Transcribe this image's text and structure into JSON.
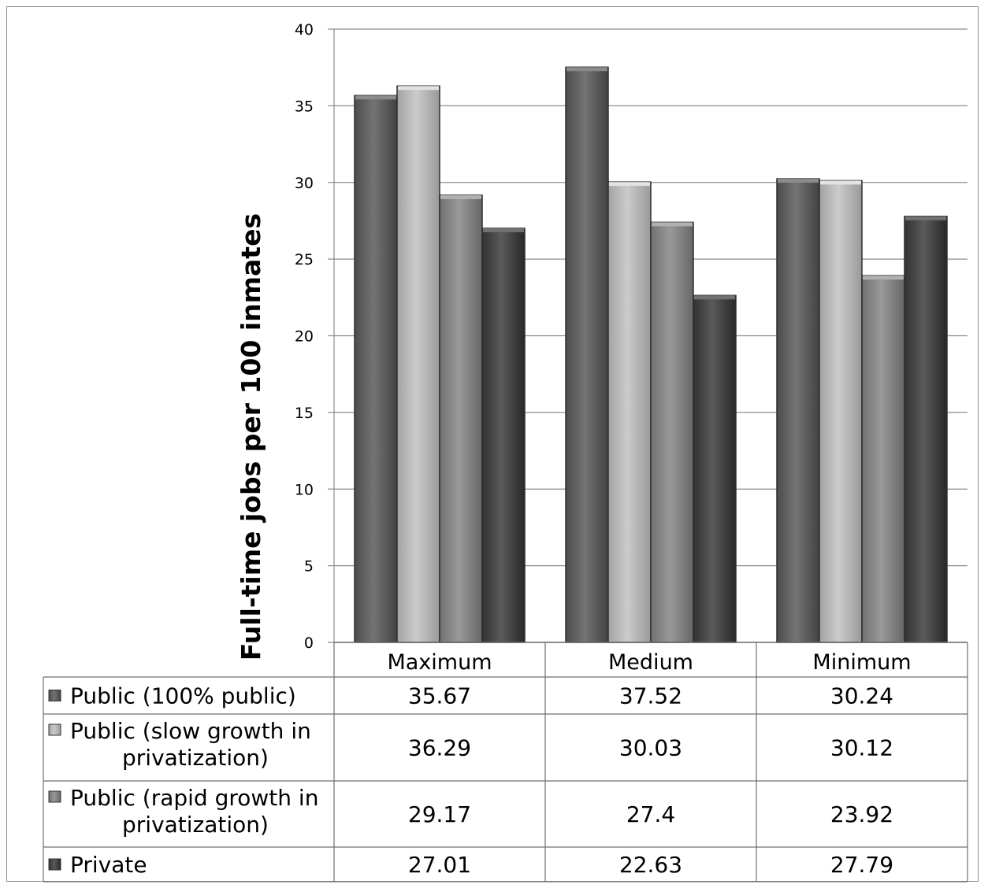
{
  "chart_data": {
    "type": "bar",
    "title": "",
    "xlabel": "",
    "ylabel": "Full-time jobs per 100 inmates",
    "ylim": [
      0,
      40
    ],
    "yticks": [
      0,
      5,
      10,
      15,
      20,
      25,
      30,
      35,
      40
    ],
    "grid": true,
    "legend_placement": "data table",
    "categories": [
      "Maximum",
      "Medium",
      "Minimum"
    ],
    "series": [
      {
        "name": "Public (100% public)",
        "legend_lines": [
          "Public (100% public)"
        ],
        "values": [
          35.67,
          37.52,
          30.24
        ],
        "labels": [
          "35.67",
          "37.52",
          "30.24"
        ],
        "color": "#5e5e5e"
      },
      {
        "name": "Public (slow growth in privatization)",
        "legend_lines": [
          "Public (slow growth in",
          "privatization)"
        ],
        "values": [
          36.29,
          30.03,
          30.12
        ],
        "labels": [
          "36.29",
          "30.03",
          "30.12"
        ],
        "color": "#b5b5b5"
      },
      {
        "name": "Public (rapid growth in privatization)",
        "legend_lines": [
          "Public (rapid growth in",
          "privatization)"
        ],
        "values": [
          29.17,
          27.4,
          23.92
        ],
        "labels": [
          "29.17",
          "27.4",
          "23.92"
        ],
        "color": "#838383"
      },
      {
        "name": "Private",
        "legend_lines": [
          "Private"
        ],
        "values": [
          27.01,
          22.63,
          27.79
        ],
        "labels": [
          "27.01",
          "22.63",
          "27.79"
        ],
        "color": "#444444"
      }
    ]
  }
}
